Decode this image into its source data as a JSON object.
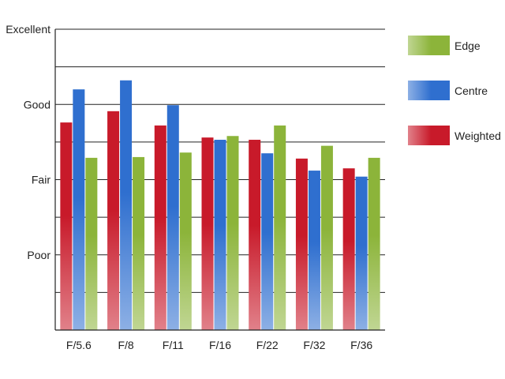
{
  "chart_data": {
    "type": "bar",
    "title": "",
    "xlabel": "",
    "ylabel": "",
    "categories": [
      "F/5.6",
      "F/8",
      "F/11",
      "F/16",
      "F/22",
      "F/32",
      "F/36"
    ],
    "ylim": [
      0,
      4
    ],
    "y_tick_values": [
      0,
      1,
      2,
      3,
      4
    ],
    "y_tick_labels": [
      "",
      "Poor",
      "Fair",
      "Good",
      "Excellent"
    ],
    "grid": true,
    "legend_position": "right",
    "series": [
      {
        "name": "Weighted",
        "color": "#c81a2a",
        "values": [
          2.76,
          2.91,
          2.72,
          2.56,
          2.53,
          2.28,
          2.15
        ]
      },
      {
        "name": "Centre",
        "color": "#2f6fcf",
        "values": [
          3.2,
          3.32,
          2.99,
          2.53,
          2.35,
          2.12,
          2.04
        ]
      },
      {
        "name": "Edge",
        "color": "#8cb43a",
        "values": [
          2.29,
          2.3,
          2.36,
          2.58,
          2.72,
          2.45,
          2.29
        ]
      }
    ]
  }
}
